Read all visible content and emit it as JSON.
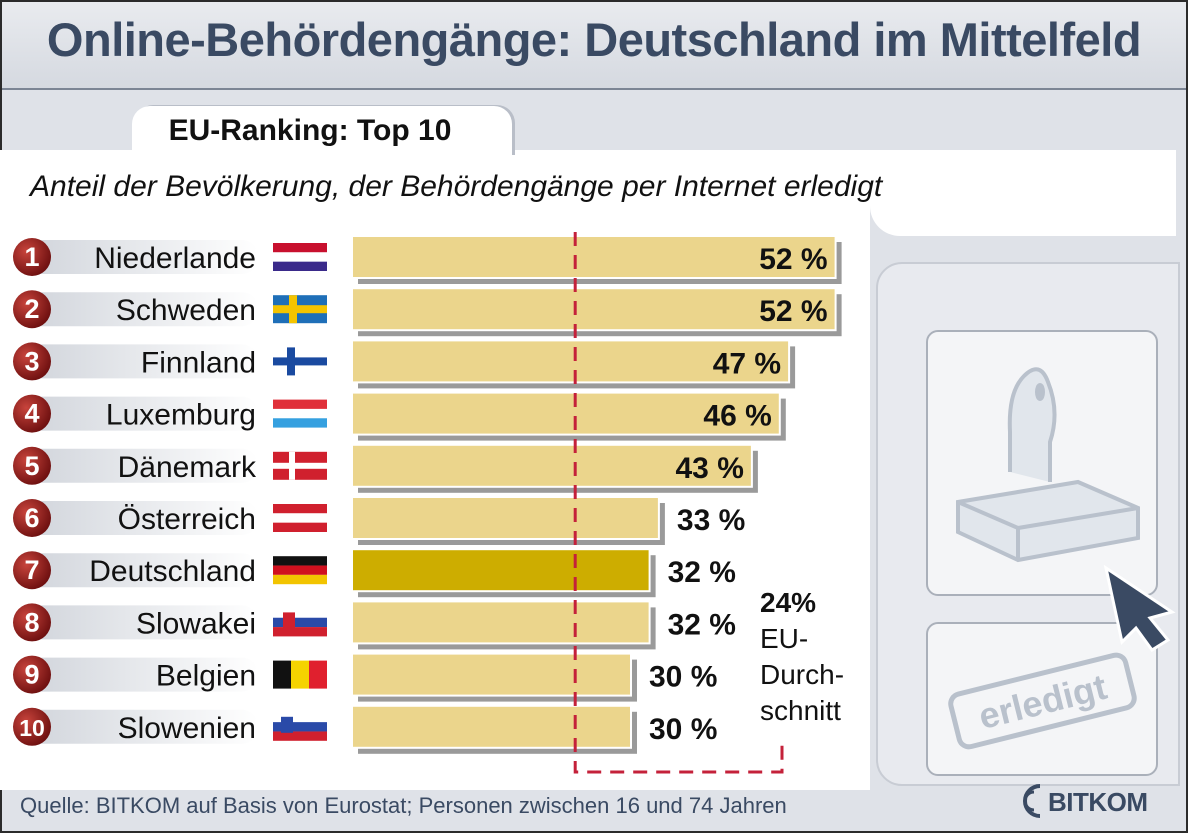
{
  "title": "Online-Behördengänge: Deutschland im Mittelfeld",
  "tab_label": "EU-Ranking: Top 10",
  "subtitle": "Anteil der Bevölkerung, der Behördengänge per Internet erledigt",
  "source": "Quelle: BITKOM auf Basis von Eurostat; Personen zwischen 16 und 74 Jahren",
  "logo_text": "BITKOM",
  "stamp_text": "erledigt",
  "colors": {
    "bar": "#ebd58c",
    "bar_highlight": "#cdad00",
    "bar_shadow": "#9a9a9a",
    "rank_badge": "#8b1a1a",
    "average_line": "#c4213a",
    "brand": "#3a4a63"
  },
  "chart_data": {
    "type": "bar",
    "orientation": "horizontal",
    "title": "EU-Ranking: Top 10",
    "subtitle": "Anteil der Bevölkerung, der Behördengänge per Internet erledigt",
    "unit": "%",
    "xlim": [
      0,
      60
    ],
    "grid": false,
    "highlight_category": "Deutschland",
    "ranks": [
      "1",
      "2",
      "3",
      "4",
      "5",
      "6",
      "7",
      "8",
      "9",
      "10"
    ],
    "categories": [
      "Niederlande",
      "Schweden",
      "Finnland",
      "Luxemburg",
      "Dänemark",
      "Österreich",
      "Deutschland",
      "Slowakei",
      "Belgien",
      "Slowenien"
    ],
    "values": [
      52,
      52,
      47,
      46,
      43,
      33,
      32,
      32,
      30,
      30
    ],
    "value_labels": [
      "52 %",
      "52 %",
      "47 %",
      "46 %",
      "43 %",
      "33 %",
      "32 %",
      "32 %",
      "30 %",
      "30 %"
    ],
    "flags": [
      "flag-nl",
      "flag-se",
      "flag-fi",
      "flag-lu",
      "flag-dk",
      "flag-at",
      "flag-de",
      "flag-sk",
      "flag-be",
      "flag-si"
    ],
    "reference_line": {
      "value": 24,
      "label_lines": [
        "24%",
        "EU-",
        "Durch-",
        "schnitt"
      ]
    }
  }
}
